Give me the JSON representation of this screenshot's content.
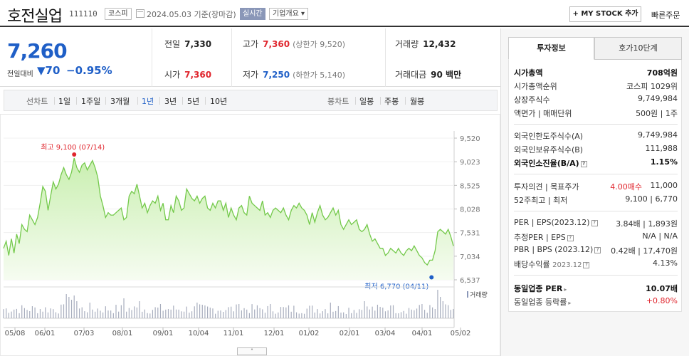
{
  "header": {
    "company": "호전실업",
    "code": "111110",
    "market": "코스피",
    "date": "2024.05.03 기준(장마감)",
    "realtime": "실시간",
    "company_overview": "기업개요 ▾",
    "mystock": "+ MY STOCK 추가",
    "quick_order": "빠른주문"
  },
  "price": {
    "current": "7,260",
    "change_label": "전일대비",
    "change_amount": "▼70",
    "change_pct": "−0.95%",
    "prev_close_label": "전일",
    "prev_close": "7,330",
    "high_label": "고가",
    "high": "7,360",
    "upper_limit": "(상한가 9,520)",
    "volume_label": "거래량",
    "volume": "12,432",
    "open_label": "시가",
    "open": "7,360",
    "low_label": "저가",
    "low": "7,250",
    "lower_limit": "(하한가 5,140)",
    "value_label": "거래대금",
    "value": "90 백만"
  },
  "period_bar": {
    "line_title": "선차트",
    "line_items": [
      "1일",
      "1주일",
      "3개월",
      "1년",
      "3년",
      "5년",
      "10년"
    ],
    "active": "1년",
    "candle_title": "봉차트",
    "candle_items": [
      "일봉",
      "주봉",
      "월봉"
    ]
  },
  "chart_data": {
    "type": "area",
    "y_ticks": [
      "9,520",
      "9,023",
      "8,525",
      "8,028",
      "7,531",
      "7,034",
      "6,537"
    ],
    "ylim": [
      6537,
      9520
    ],
    "x_ticks": [
      "05/08",
      "06/01",
      "07/03",
      "08/01",
      "09/01",
      "10/04",
      "11/01",
      "12/01",
      "01/02",
      "02/01",
      "03/04",
      "04/01",
      "05/02"
    ],
    "high_annotation": "최고 9,100 (07/14)",
    "low_annotation": "최저 6,770 (04/11)",
    "volume_label": "거래량",
    "colors": {
      "line": "#74c94b",
      "fill": "#e6f7d9",
      "high": "#e0262e",
      "low": "#1f5fc7",
      "volume": "#a7adbd"
    },
    "values": [
      7200,
      7350,
      7050,
      7400,
      7100,
      7500,
      7300,
      7700,
      7600,
      7550,
      7900,
      7800,
      7700,
      7850,
      8150,
      8500,
      8400,
      8000,
      8300,
      8600,
      8450,
      8550,
      8750,
      8900,
      8750,
      8650,
      8800,
      9100,
      8900,
      8800,
      8950,
      9000,
      8850,
      8950,
      9050,
      8900,
      8700,
      8300,
      8100,
      7850,
      7950,
      7900,
      7900,
      7950,
      8000,
      8050,
      7800,
      7850,
      8300,
      8400,
      8350,
      8550,
      8300,
      8050,
      8150,
      7950,
      8100,
      8200,
      8150,
      8300,
      8000,
      8150,
      7800,
      7800,
      8100,
      7950,
      8300,
      8200,
      8000,
      8050,
      8450,
      8350,
      8250,
      8200,
      8300,
      8150,
      8250,
      8300,
      8050,
      8000,
      8150,
      8050,
      8200,
      8200,
      8000,
      8150,
      7850,
      8050,
      7900,
      7800,
      8050,
      8100,
      7950,
      7900,
      8300,
      8150,
      8100,
      8050,
      8000,
      8200,
      7900,
      7950,
      7850,
      8000,
      8050,
      8000,
      7950,
      8050,
      7900,
      7800,
      8000,
      8100,
      8050,
      8150,
      8050,
      8000,
      7900,
      7700,
      7950,
      7750,
      7950,
      8100,
      7900,
      7800,
      7850,
      7950,
      8050,
      7900,
      8000,
      7700,
      7600,
      7700,
      7800,
      7700,
      7750,
      7800,
      7600,
      7550,
      7600,
      7700,
      7500,
      7350,
      7400,
      7300,
      7200,
      7200,
      7050,
      7100,
      7200,
      7150,
      7100,
      7200,
      7100,
      7050,
      7150,
      7200,
      7150,
      7250,
      7150,
      7050,
      7000,
      6900,
      6850,
      6950,
      6950,
      7150,
      7550,
      7600,
      7550,
      7500,
      7600,
      7450,
      7250
    ]
  },
  "right_panel": {
    "tab_active": "투자정보",
    "tab_inactive": "호가10단계",
    "rows1": [
      {
        "l": "시가총액",
        "r": "708억원"
      },
      {
        "l": "시가총액순위",
        "r": "코스피 1029위"
      },
      {
        "l": "상장주식수",
        "r": "9,749,984"
      },
      {
        "l": "액면가 | 매매단위",
        "r": "500원 | 1주"
      }
    ],
    "rows2": [
      {
        "l": "외국인한도주식수(A)",
        "r": "9,749,984"
      },
      {
        "l": "외국인보유주식수(B)",
        "r": "111,988"
      },
      {
        "l": "외국인소진율(B/A)",
        "r": "1.15%"
      }
    ],
    "opinion_label": "투자의견 | 목표주가",
    "opinion_value": "4.00매수",
    "target_price": "11,000",
    "range_label": "52주최고 | 최저",
    "range_value": "9,100 | 6,770",
    "per_label": "PER | EPS(2023.12)",
    "per_value": "3.84배 | 1,893원",
    "est_per_label": "추정PER | EPS",
    "est_per_value": "N/A | N/A",
    "pbr_label": "PBR | BPS (2023.12)",
    "pbr_value": "0.42배 | 17,470원",
    "div_label": "배당수익률",
    "div_period": "2023.12",
    "div_value": "4.13%",
    "industry_per_label": "동일업종 PER",
    "industry_per_value": "10.07배",
    "industry_change_label": "동일업종 등락률",
    "industry_change_value": "+0.80%"
  }
}
